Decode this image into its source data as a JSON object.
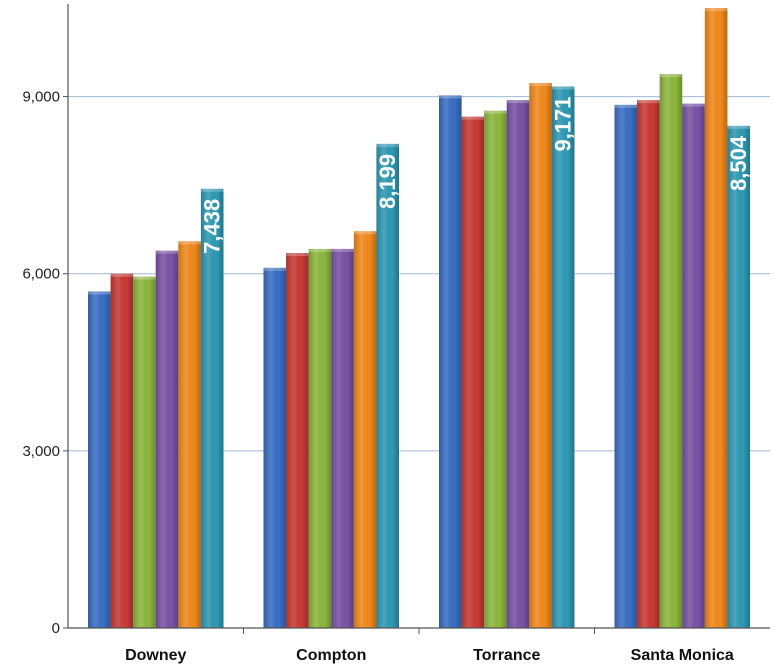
{
  "chart_data": {
    "type": "bar",
    "title": "",
    "xlabel": "",
    "ylabel": "",
    "categories": [
      "Downey",
      "Compton",
      "Torrance",
      "Santa Monica"
    ],
    "ylim": [
      0,
      10500
    ],
    "yticks": [
      0,
      3000,
      6000,
      9000
    ],
    "ytick_labels": [
      "0",
      "3,000",
      "6,000",
      "9,000"
    ],
    "grid": "horizontal",
    "legend": "none",
    "series": [
      {
        "color": "#3A6FC4",
        "values": [
          5700,
          6100,
          9020,
          8860
        ]
      },
      {
        "color": "#C93A36",
        "values": [
          6000,
          6350,
          8660,
          8940
        ]
      },
      {
        "color": "#8DB83D",
        "values": [
          5950,
          6420,
          8760,
          9380
        ]
      },
      {
        "color": "#7A53A6",
        "values": [
          6390,
          6420,
          8940,
          8880
        ]
      },
      {
        "color": "#F28A1C",
        "values": [
          6550,
          6720,
          9230,
          10500
        ]
      },
      {
        "color": "#2F9AB5",
        "values": [
          7438,
          8199,
          9171,
          8504
        ]
      }
    ],
    "data_labels": {
      "series_index": 5,
      "labels": [
        "7,438",
        "8,199",
        "9,171",
        "8,504"
      ]
    }
  }
}
